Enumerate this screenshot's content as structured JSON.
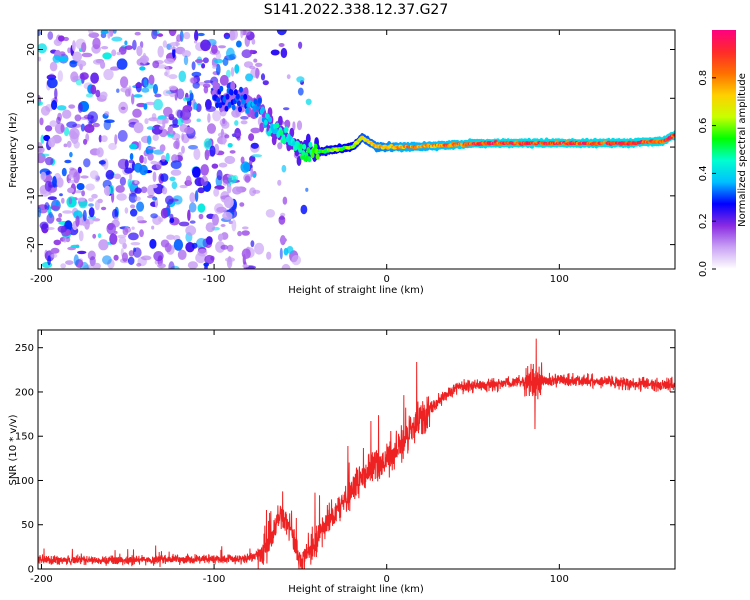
{
  "title": "S141.2022.338.12.37.G27",
  "chart_data": [
    {
      "type": "heatmap",
      "xlabel": "Height of straight line (km)",
      "ylabel": "Frequency (Hz)",
      "xlim": [
        -202,
        167
      ],
      "ylim": [
        -25,
        24
      ],
      "x_ticks": [
        -200,
        -100,
        0,
        100
      ],
      "y_ticks": [
        -20,
        -10,
        0,
        10,
        20
      ],
      "colorbar": {
        "label": "Normalized spectral amplitude",
        "ticks": [
          0.0,
          0.2,
          0.4,
          0.6,
          0.8
        ],
        "range": [
          0,
          1
        ],
        "colormap": [
          "#ffffff",
          "#c9a2f5",
          "#8a2be2",
          "#0000ff",
          "#00bfff",
          "#00ffd0",
          "#00ff00",
          "#c8ff00",
          "#ffd000",
          "#ff7000",
          "#ff2a2a",
          "#ff0080"
        ]
      },
      "ridge": {
        "x": [
          -85,
          -75,
          -68,
          -62,
          -55,
          -48,
          -40,
          -30,
          -20,
          -14,
          -10,
          -6,
          0,
          10,
          25,
          40,
          60,
          80,
          100,
          120,
          140,
          160,
          167
        ],
        "freq_hz": [
          10,
          8,
          5,
          3,
          1,
          -1,
          -1,
          -0.5,
          0,
          2,
          1,
          0,
          0,
          0,
          0.2,
          0.5,
          0.8,
          0.8,
          0.8,
          0.8,
          0.8,
          1.2,
          2.5
        ],
        "amplitude": [
          0.3,
          0.35,
          0.4,
          0.45,
          0.45,
          0.5,
          0.55,
          0.6,
          0.6,
          0.7,
          0.7,
          0.75,
          0.75,
          0.8,
          0.8,
          0.85,
          0.9,
          0.9,
          0.9,
          0.9,
          0.9,
          0.9,
          0.9
        ]
      },
      "noise_region_x": [
        -202,
        -45
      ]
    },
    {
      "type": "line",
      "xlabel": "Height of straight line (km)",
      "ylabel": "SNR (10 * v/v)",
      "xlim": [
        -202,
        167
      ],
      "ylim": [
        0,
        270
      ],
      "x_ticks": [
        -200,
        -100,
        0,
        100
      ],
      "y_ticks": [
        0,
        50,
        100,
        150,
        200,
        250
      ],
      "line_color": "#ee2222",
      "trend": {
        "x": [
          -202,
          -140,
          -80,
          -70,
          -62,
          -56,
          -50,
          -44,
          -36,
          -28,
          -20,
          -10,
          0,
          10,
          20,
          30,
          40,
          60,
          80,
          100,
          120,
          140,
          167
        ],
        "y": [
          10,
          10,
          12,
          20,
          60,
          50,
          8,
          20,
          50,
          70,
          90,
          110,
          125,
          145,
          170,
          190,
          205,
          208,
          212,
          214,
          212,
          210,
          208
        ]
      }
    }
  ]
}
